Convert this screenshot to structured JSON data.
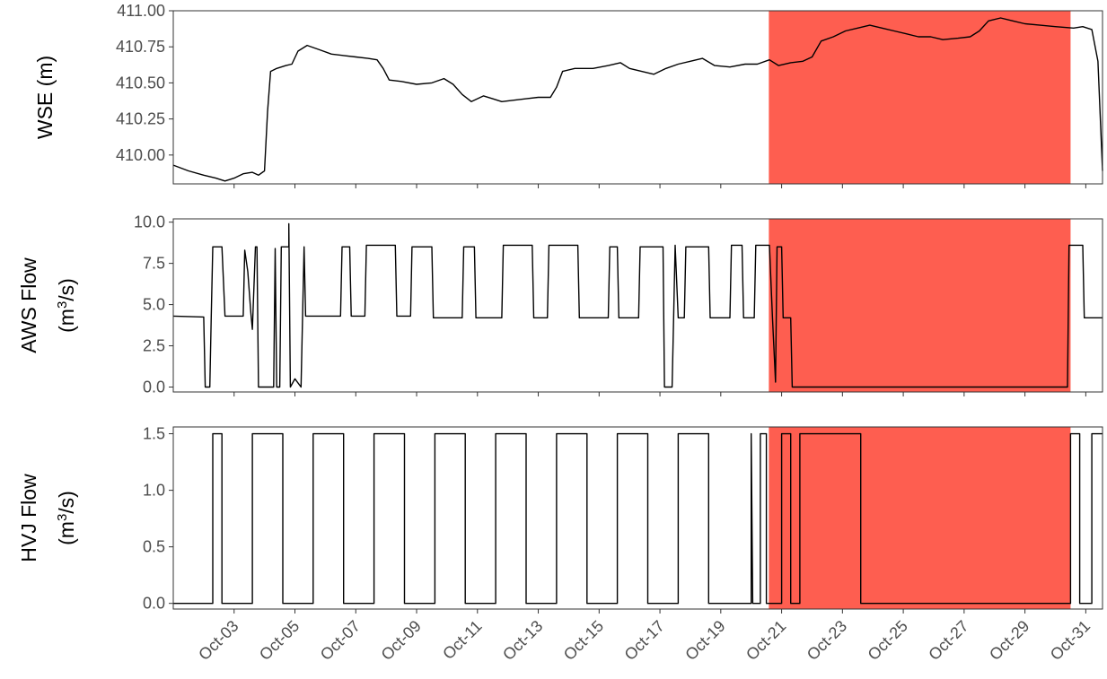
{
  "chart_data": [
    {
      "type": "line",
      "panel": "wse",
      "ylabel": "WSE (m)",
      "ylim": [
        409.8,
        411.0
      ],
      "yticks": [
        410.0,
        410.25,
        410.5,
        410.75,
        411.0
      ],
      "ytick_labels": [
        "410.00",
        "410.25",
        "410.50",
        "410.75",
        "411.00"
      ],
      "grid": false,
      "series": [
        {
          "points": [
            [
              1.0,
              409.93
            ],
            [
              1.5,
              409.89
            ],
            [
              2.0,
              409.86
            ],
            [
              2.4,
              409.84
            ],
            [
              2.7,
              409.82
            ],
            [
              3.0,
              409.84
            ],
            [
              3.3,
              409.87
            ],
            [
              3.6,
              409.88
            ],
            [
              3.8,
              409.86
            ],
            [
              4.0,
              409.89
            ],
            [
              4.1,
              410.3
            ],
            [
              4.2,
              410.58
            ],
            [
              4.4,
              410.6
            ],
            [
              4.7,
              410.62
            ],
            [
              4.9,
              410.63
            ],
            [
              5.1,
              410.72
            ],
            [
              5.4,
              410.76
            ],
            [
              5.8,
              410.73
            ],
            [
              6.2,
              410.7
            ],
            [
              6.6,
              410.69
            ],
            [
              7.0,
              410.68
            ],
            [
              7.4,
              410.67
            ],
            [
              7.7,
              410.66
            ],
            [
              7.9,
              410.6
            ],
            [
              8.1,
              410.52
            ],
            [
              8.5,
              410.51
            ],
            [
              9.0,
              410.49
            ],
            [
              9.5,
              410.5
            ],
            [
              9.9,
              410.53
            ],
            [
              10.2,
              410.49
            ],
            [
              10.5,
              410.42
            ],
            [
              10.8,
              410.37
            ],
            [
              11.2,
              410.41
            ],
            [
              11.5,
              410.39
            ],
            [
              11.8,
              410.37
            ],
            [
              12.2,
              410.38
            ],
            [
              12.6,
              410.39
            ],
            [
              13.0,
              410.4
            ],
            [
              13.4,
              410.4
            ],
            [
              13.6,
              410.47
            ],
            [
              13.8,
              410.58
            ],
            [
              14.2,
              410.6
            ],
            [
              14.8,
              410.6
            ],
            [
              15.3,
              410.62
            ],
            [
              15.7,
              410.64
            ],
            [
              16.0,
              410.6
            ],
            [
              16.4,
              410.58
            ],
            [
              16.8,
              410.56
            ],
            [
              17.2,
              410.6
            ],
            [
              17.6,
              410.63
            ],
            [
              18.0,
              410.65
            ],
            [
              18.4,
              410.67
            ],
            [
              18.8,
              410.62
            ],
            [
              19.3,
              410.61
            ],
            [
              19.8,
              410.63
            ],
            [
              20.2,
              410.63
            ],
            [
              20.6,
              410.66
            ],
            [
              20.9,
              410.62
            ],
            [
              21.3,
              410.64
            ],
            [
              21.7,
              410.65
            ],
            [
              22.0,
              410.68
            ],
            [
              22.3,
              410.79
            ],
            [
              22.7,
              410.82
            ],
            [
              23.1,
              410.86
            ],
            [
              23.5,
              410.88
            ],
            [
              23.9,
              410.9
            ],
            [
              24.3,
              410.88
            ],
            [
              24.7,
              410.86
            ],
            [
              25.1,
              410.84
            ],
            [
              25.5,
              410.82
            ],
            [
              25.9,
              410.82
            ],
            [
              26.3,
              410.8
            ],
            [
              26.8,
              410.81
            ],
            [
              27.2,
              410.82
            ],
            [
              27.5,
              410.86
            ],
            [
              27.8,
              410.93
            ],
            [
              28.2,
              410.95
            ],
            [
              28.6,
              410.93
            ],
            [
              29.0,
              410.91
            ],
            [
              29.5,
              410.9
            ],
            [
              30.0,
              410.89
            ],
            [
              30.6,
              410.88
            ],
            [
              30.9,
              410.89
            ],
            [
              31.2,
              410.87
            ],
            [
              31.4,
              410.65
            ],
            [
              31.55,
              409.89
            ]
          ]
        }
      ]
    },
    {
      "type": "line",
      "panel": "aws",
      "ylabel": "AWS Flow",
      "ylabel2": "(m",
      "ylabel2_sup": "3",
      "ylabel2_end": "/s)",
      "ylim": [
        -0.3,
        10.2
      ],
      "yticks": [
        0.0,
        2.5,
        5.0,
        7.5,
        10.0
      ],
      "ytick_labels": [
        "0.0",
        "2.5",
        "5.0",
        "7.5",
        "10.0"
      ],
      "grid": false,
      "series": [
        {
          "points": [
            [
              1.0,
              4.3
            ],
            [
              2.0,
              4.25
            ],
            [
              2.05,
              0.0
            ],
            [
              2.2,
              0.0
            ],
            [
              2.25,
              4.3
            ],
            [
              2.3,
              8.5
            ],
            [
              2.6,
              8.5
            ],
            [
              2.7,
              4.3
            ],
            [
              3.3,
              4.3
            ],
            [
              3.35,
              8.3
            ],
            [
              3.45,
              7.0
            ],
            [
              3.55,
              4.5
            ],
            [
              3.6,
              3.5
            ],
            [
              3.7,
              8.5
            ],
            [
              3.75,
              8.5
            ],
            [
              3.8,
              0.0
            ],
            [
              4.3,
              0.0
            ],
            [
              4.35,
              8.4
            ],
            [
              4.4,
              0.0
            ],
            [
              4.5,
              0.0
            ],
            [
              4.55,
              8.5
            ],
            [
              4.8,
              8.5
            ],
            [
              4.8,
              9.9
            ],
            [
              4.85,
              0.0
            ],
            [
              5.0,
              0.5
            ],
            [
              5.2,
              0.0
            ],
            [
              5.3,
              8.5
            ],
            [
              5.35,
              4.3
            ],
            [
              6.5,
              4.3
            ],
            [
              6.55,
              8.5
            ],
            [
              6.8,
              8.5
            ],
            [
              6.85,
              4.3
            ],
            [
              7.3,
              4.3
            ],
            [
              7.35,
              8.6
            ],
            [
              8.3,
              8.6
            ],
            [
              8.35,
              4.3
            ],
            [
              8.8,
              4.3
            ],
            [
              8.85,
              8.5
            ],
            [
              9.5,
              8.5
            ],
            [
              9.55,
              4.2
            ],
            [
              10.5,
              4.2
            ],
            [
              10.55,
              8.5
            ],
            [
              10.9,
              8.5
            ],
            [
              10.95,
              4.2
            ],
            [
              11.8,
              4.2
            ],
            [
              11.85,
              8.6
            ],
            [
              12.8,
              8.6
            ],
            [
              12.85,
              4.2
            ],
            [
              13.3,
              4.2
            ],
            [
              13.35,
              8.6
            ],
            [
              14.3,
              8.6
            ],
            [
              14.35,
              4.2
            ],
            [
              15.3,
              4.2
            ],
            [
              15.35,
              8.5
            ],
            [
              15.6,
              8.5
            ],
            [
              15.65,
              4.2
            ],
            [
              16.3,
              4.2
            ],
            [
              16.35,
              8.5
            ],
            [
              17.1,
              8.5
            ],
            [
              17.15,
              0.0
            ],
            [
              17.4,
              0.0
            ],
            [
              17.45,
              4.2
            ],
            [
              17.5,
              8.6
            ],
            [
              17.6,
              4.2
            ],
            [
              17.8,
              4.2
            ],
            [
              17.85,
              8.5
            ],
            [
              18.6,
              8.5
            ],
            [
              18.65,
              4.2
            ],
            [
              19.3,
              4.2
            ],
            [
              19.35,
              8.6
            ],
            [
              19.7,
              8.6
            ],
            [
              19.75,
              4.2
            ],
            [
              20.1,
              4.2
            ],
            [
              20.15,
              8.6
            ],
            [
              20.6,
              8.6
            ],
            [
              20.7,
              4.2
            ],
            [
              20.8,
              0.3
            ],
            [
              20.85,
              8.5
            ],
            [
              21.0,
              8.5
            ],
            [
              21.05,
              4.2
            ],
            [
              21.3,
              4.2
            ],
            [
              21.35,
              0.0
            ],
            [
              30.4,
              0.0
            ],
            [
              30.45,
              8.6
            ],
            [
              30.9,
              8.6
            ],
            [
              30.95,
              4.2
            ],
            [
              31.55,
              4.2
            ]
          ]
        }
      ]
    },
    {
      "type": "line",
      "panel": "hvj",
      "ylabel": "HVJ Flow",
      "ylabel2": "(m",
      "ylabel2_sup": "3",
      "ylabel2_end": "/s)",
      "ylim": [
        -0.05,
        1.56
      ],
      "yticks": [
        0.0,
        0.5,
        1.0,
        1.5
      ],
      "ytick_labels": [
        "0.0",
        "0.5",
        "1.0",
        "1.5"
      ],
      "xlabels": [
        "Oct-03",
        "Oct-05",
        "Oct-07",
        "Oct-09",
        "Oct-11",
        "Oct-13",
        "Oct-15",
        "Oct-17",
        "Oct-19",
        "Oct-21",
        "Oct-23",
        "Oct-25",
        "Oct-27",
        "Oct-29",
        "Oct-31"
      ],
      "xticks": [
        3,
        5,
        7,
        9,
        11,
        13,
        15,
        17,
        19,
        21,
        23,
        25,
        27,
        29,
        31
      ],
      "grid": false,
      "series": [
        {
          "points": [
            [
              1.0,
              0.0
            ],
            [
              2.3,
              0.0
            ],
            [
              2.3,
              1.5
            ],
            [
              2.6,
              1.5
            ],
            [
              2.6,
              0.0
            ],
            [
              3.6,
              0.0
            ],
            [
              3.6,
              1.5
            ],
            [
              4.6,
              1.5
            ],
            [
              4.6,
              0.0
            ],
            [
              5.6,
              0.0
            ],
            [
              5.6,
              1.5
            ],
            [
              6.6,
              1.5
            ],
            [
              6.6,
              0.0
            ],
            [
              7.6,
              0.0
            ],
            [
              7.6,
              1.5
            ],
            [
              8.6,
              1.5
            ],
            [
              8.6,
              0.0
            ],
            [
              9.6,
              0.0
            ],
            [
              9.6,
              1.5
            ],
            [
              10.6,
              1.5
            ],
            [
              10.6,
              0.0
            ],
            [
              11.6,
              0.0
            ],
            [
              11.6,
              1.5
            ],
            [
              12.6,
              1.5
            ],
            [
              12.6,
              0.0
            ],
            [
              13.6,
              0.0
            ],
            [
              13.6,
              1.5
            ],
            [
              14.6,
              1.5
            ],
            [
              14.6,
              0.0
            ],
            [
              15.6,
              0.0
            ],
            [
              15.6,
              1.5
            ],
            [
              16.6,
              1.5
            ],
            [
              16.6,
              0.0
            ],
            [
              17.6,
              0.0
            ],
            [
              17.6,
              1.5
            ],
            [
              18.6,
              1.5
            ],
            [
              18.6,
              0.0
            ],
            [
              20.0,
              0.0
            ],
            [
              20.0,
              1.5
            ],
            [
              20.05,
              0.0
            ],
            [
              20.3,
              0.0
            ],
            [
              20.3,
              1.5
            ],
            [
              20.5,
              1.5
            ],
            [
              20.5,
              0.0
            ],
            [
              21.0,
              0.0
            ],
            [
              21.0,
              1.5
            ],
            [
              21.3,
              1.5
            ],
            [
              21.3,
              0.0
            ],
            [
              21.6,
              0.0
            ],
            [
              21.6,
              1.5
            ],
            [
              23.6,
              1.5
            ],
            [
              23.6,
              0.0
            ],
            [
              30.5,
              0.0
            ],
            [
              30.5,
              1.5
            ],
            [
              30.8,
              1.5
            ],
            [
              30.8,
              0.0
            ],
            [
              31.2,
              0.0
            ],
            [
              31.2,
              1.5
            ],
            [
              31.55,
              1.5
            ]
          ]
        }
      ]
    }
  ],
  "shaded_region": {
    "x_start": 20.58,
    "x_end": 30.5,
    "color": "#fe5e50"
  },
  "x_domain": [
    1.0,
    31.55
  ],
  "colors": {
    "line": "#000000",
    "frame": "#333333",
    "tick_text": "#4d4d4d"
  }
}
